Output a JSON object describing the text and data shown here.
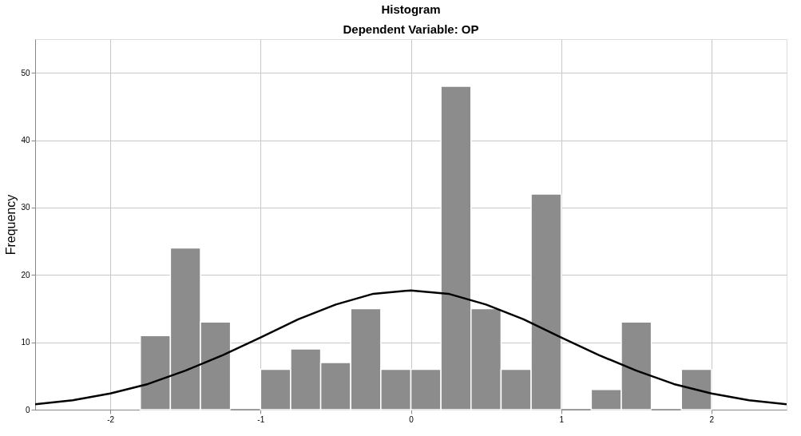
{
  "chart_data": {
    "type": "histogram",
    "title": "Histogram",
    "subtitle": "Dependent Variable: OP",
    "ylabel": "Frequency",
    "bins": [
      -1.8,
      -1.6,
      -1.4,
      -1.2,
      -1.0,
      -0.8,
      -0.6,
      -0.4,
      -0.2,
      0.0,
      0.2,
      0.4,
      0.6,
      0.8,
      1.0,
      1.2,
      1.4,
      1.6,
      1.8,
      2.0
    ],
    "values": [
      11,
      24,
      13,
      0,
      6,
      9,
      7,
      15,
      6,
      6,
      48,
      15,
      6,
      32,
      0,
      3,
      13,
      0,
      6
    ],
    "color": "#8c8c8c",
    "series": [
      {
        "type": "line",
        "color": "#000000",
        "x": [
          -2.5,
          -2.25,
          -2.0,
          -1.75,
          -1.5,
          -1.25,
          -1.0,
          -0.75,
          -0.5,
          -0.25,
          0.0,
          0.25,
          0.5,
          0.75,
          1.0,
          1.25,
          1.5,
          1.75,
          2.0,
          2.25,
          2.5
        ],
        "values": [
          0.8,
          1.4,
          2.4,
          3.8,
          5.8,
          8.1,
          10.7,
          13.4,
          15.6,
          17.2,
          17.7,
          17.2,
          15.6,
          13.4,
          10.7,
          8.1,
          5.8,
          3.8,
          2.4,
          1.4,
          0.8
        ]
      }
    ],
    "xlim": [
      -2.5,
      2.5
    ],
    "xticks": [
      -2,
      -1,
      0,
      1,
      2
    ],
    "ylim": [
      0,
      55
    ],
    "yticks": [
      0,
      10,
      20,
      30,
      40,
      50
    ],
    "grid": true,
    "marker": "none",
    "line_style": "solid"
  }
}
